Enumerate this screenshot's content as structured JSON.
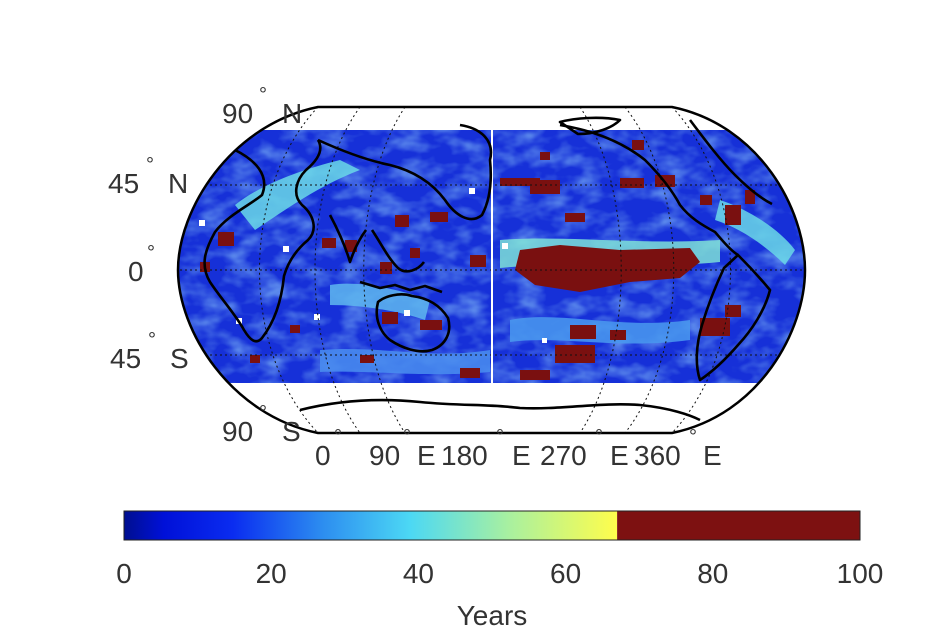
{
  "map": {
    "projection": "equal-area (Robinson-like) world map",
    "latitude_labels": [
      {
        "value": "90",
        "deg": "°",
        "hemi": "N"
      },
      {
        "value": "45",
        "deg": "°",
        "hemi": "N"
      },
      {
        "value": "0",
        "deg": "°",
        "hemi": ""
      },
      {
        "value": "45",
        "deg": "°",
        "hemi": "S"
      },
      {
        "value": "90",
        "deg": "°",
        "hemi": "S"
      }
    ],
    "longitude_labels": [
      {
        "value": "0",
        "deg": "°",
        "hemi": ""
      },
      {
        "value": "90",
        "deg": "°",
        "hemi": "E"
      },
      {
        "value": "180",
        "deg": "°",
        "hemi": "E"
      },
      {
        "value": "270",
        "deg": "°",
        "hemi": "E"
      },
      {
        "value": "360",
        "deg": "°",
        "hemi": "E"
      }
    ],
    "data_coverage": "60°S to 90°N",
    "colors": {
      "ocean_base": "#1630d8",
      "deep_blue": "#0a1aa8",
      "light_blue": "#4a8ef0",
      "cyan": "#6ad8e8",
      "dark_red": "#7a1010",
      "coast": "#000000"
    }
  },
  "colorbar": {
    "label": "Years",
    "ticks": [
      "0",
      "20",
      "40",
      "60",
      "80",
      "100"
    ],
    "min": 0,
    "max": 100,
    "saturation_threshold": 67,
    "colors": {
      "start": "#000f8f",
      "blue": "#0a2cf0",
      "mid": "#4cd8f4",
      "yellow": "#fffd4c",
      "over": "#7d1111"
    }
  }
}
